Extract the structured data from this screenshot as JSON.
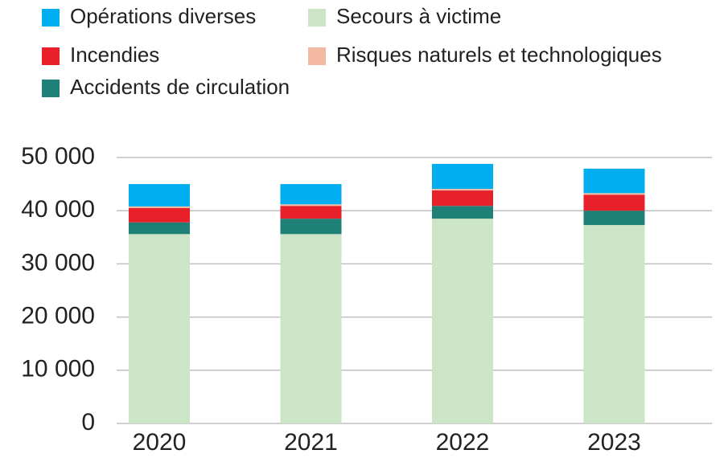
{
  "chart_data": {
    "type": "stacked_bar",
    "categories": [
      "2020",
      "2021",
      "2022",
      "2023"
    ],
    "series": [
      {
        "name": "Opérations diverses",
        "color": "#00adef",
        "values": [
          4200,
          3800,
          4700,
          4600
        ]
      },
      {
        "name": "Secours à victime",
        "color": "#cce5c6",
        "values": [
          35600,
          35600,
          38500,
          37300
        ]
      },
      {
        "name": "Incendies",
        "color": "#e8202a",
        "values": [
          2700,
          2400,
          2900,
          3000
        ]
      },
      {
        "name": "Risques naturels et technologiques",
        "color": "#f4b9a2",
        "values": [
          300,
          300,
          300,
          300
        ]
      },
      {
        "name": "Accidents de circulation",
        "color": "#1f8078",
        "values": [
          2200,
          2900,
          2400,
          2700
        ]
      }
    ],
    "ylim": [
      0,
      50000
    ],
    "yticks": [
      0,
      {
        "value": 10000,
        "label": "10 000"
      },
      {
        "value": 20000,
        "label": "20 000"
      },
      {
        "value": 30000,
        "label": "30 000"
      },
      {
        "value": 40000,
        "label": "40 000"
      },
      {
        "value": 50000,
        "label": "50 000"
      }
    ],
    "grid": true
  }
}
